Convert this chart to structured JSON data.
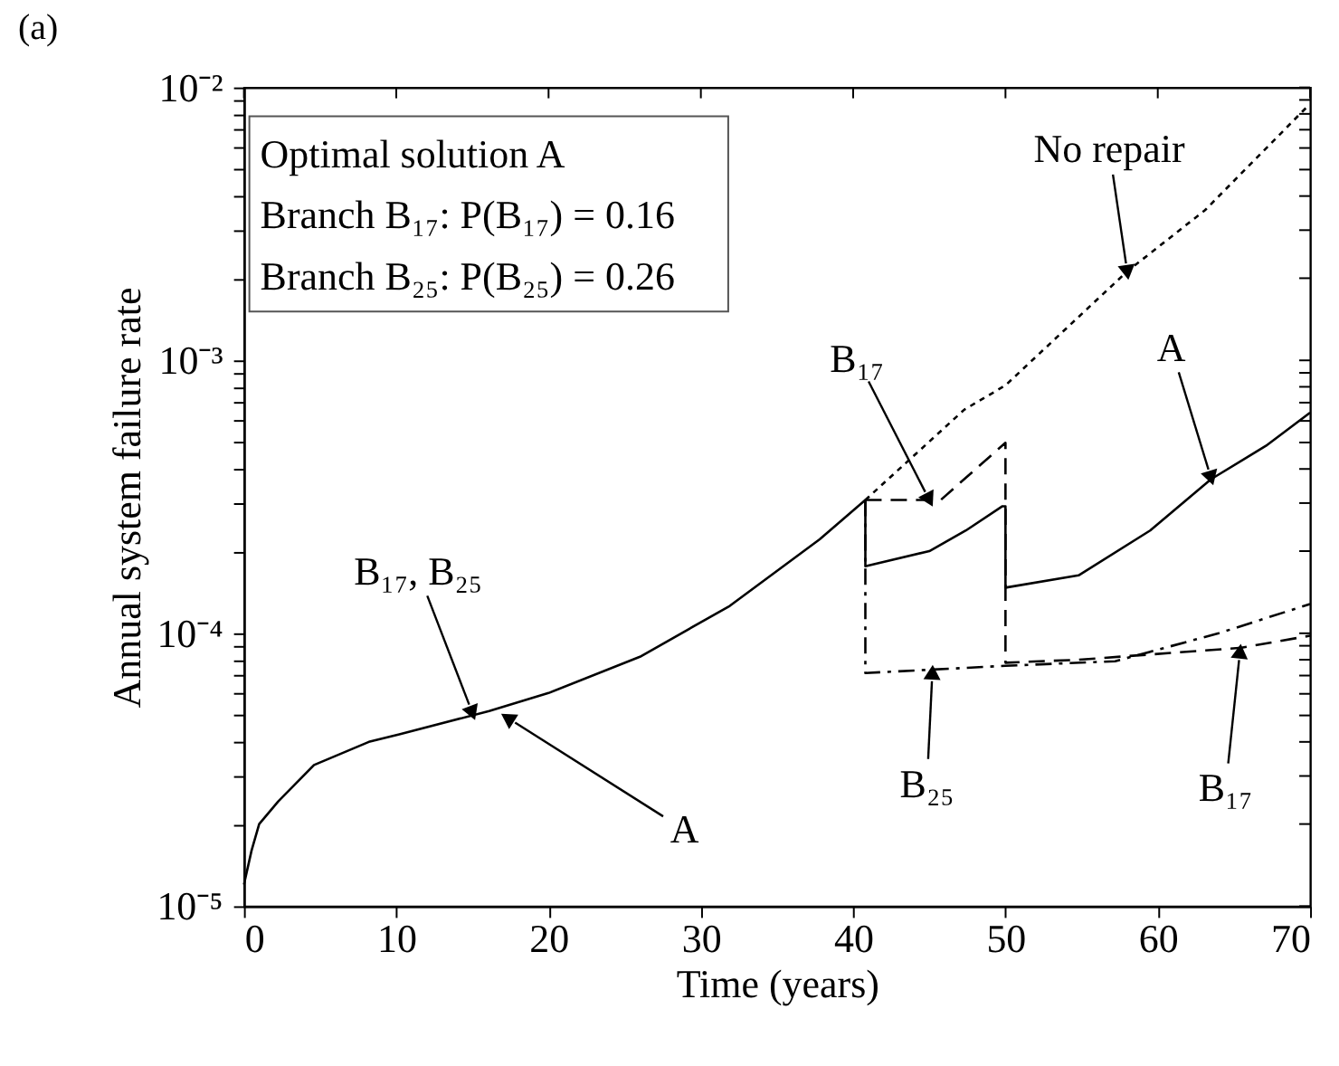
{
  "chart_data": {
    "type": "line",
    "title": "(a)",
    "xlabel": "Time (years)",
    "ylabel": "Annual system failure rate",
    "xlim": [
      0,
      70
    ],
    "ylim": [
      1e-05,
      0.01
    ],
    "log": true,
    "grid": false,
    "xticks": [
      0,
      10,
      20,
      30,
      40,
      50,
      60,
      70
    ],
    "yticks": [
      {
        "value": 1e-05,
        "label": "10⁻⁵"
      },
      {
        "value": 2e-05,
        "label": null
      },
      {
        "value": 3e-05,
        "label": null
      },
      {
        "value": 4e-05,
        "label": null
      },
      {
        "value": 5e-05,
        "label": null
      },
      {
        "value": 6e-05,
        "label": null
      },
      {
        "value": 7e-05,
        "label": null
      },
      {
        "value": 8e-05,
        "label": null
      },
      {
        "value": 9e-05,
        "label": null
      },
      {
        "value": 0.0001,
        "label": "10⁻⁴"
      },
      {
        "value": 0.0002,
        "label": null
      },
      {
        "value": 0.0003,
        "label": null
      },
      {
        "value": 0.0004,
        "label": null
      },
      {
        "value": 0.0005,
        "label": null
      },
      {
        "value": 0.0006,
        "label": null
      },
      {
        "value": 0.0007,
        "label": null
      },
      {
        "value": 0.0008,
        "label": null
      },
      {
        "value": 0.0009,
        "label": null
      },
      {
        "value": 0.001,
        "label": "10⁻³"
      },
      {
        "value": 0.002,
        "label": null
      },
      {
        "value": 0.003,
        "label": null
      },
      {
        "value": 0.004,
        "label": null
      },
      {
        "value": 0.005,
        "label": null
      },
      {
        "value": 0.006,
        "label": null
      },
      {
        "value": 0.007,
        "label": null
      },
      {
        "value": 0.008,
        "label": null
      },
      {
        "value": 0.009,
        "label": null
      },
      {
        "value": 0.01,
        "label": "10⁻²"
      }
    ],
    "series": [
      {
        "color": "#000000",
        "line_style": "solid",
        "x": [
          0,
          0.5,
          1,
          2.25,
          4.6,
          8.2,
          10.2,
          16.1,
          20,
          26,
          31.9,
          37.8,
          40.8,
          40.8,
          45,
          47.4,
          49.8,
          50,
          50,
          54.8,
          59.5,
          63.5,
          67.1,
          70
        ],
        "values": [
          1.2e-05,
          1.6e-05,
          2e-05,
          2.42e-05,
          3.29e-05,
          4e-05,
          4.26e-05,
          5.19e-05,
          6.04e-05,
          8.2e-05,
          0.000126,
          0.000221,
          0.000308,
          0.000176,
          0.0002,
          0.000238,
          0.000292,
          0.000292,
          0.000147,
          0.000163,
          0.000238,
          0.000367,
          0.000486,
          0.000643
        ]
      },
      {
        "color": "#000000",
        "line_style": "dotted",
        "x": [
          40.8,
          47.3,
          50,
          58,
          63.1,
          69.9
        ],
        "values": [
          0.000308,
          0.00066,
          0.00081,
          0.00212,
          0.00355,
          0.0086
        ]
      },
      {
        "color": "#000000",
        "line_style": "dashed",
        "x": [
          40.8,
          45.75,
          50,
          50,
          54.8,
          65.5,
          70
        ],
        "values": [
          0.000308,
          0.000308,
          0.000499,
          7.8e-05,
          8e-05,
          8.85e-05,
          9.8e-05
        ]
      },
      {
        "color": "#000000",
        "line_style": "dashdot",
        "x": [
          40.8,
          40.8,
          50,
          57.2,
          64,
          70
        ],
        "values": [
          0.000308,
          7.15e-05,
          7.6e-05,
          7.9e-05,
          0.0001,
          0.000128
        ]
      }
    ],
    "annotations": [
      {
        "text": "No repair",
        "x": 58,
        "y": 0.0021
      },
      {
        "text": "A",
        "x": 63.5,
        "y": 0.00037
      },
      {
        "text": "B₁₇",
        "x": 45,
        "y": 0.000308
      },
      {
        "text": "B₁₇, B₂₅",
        "x": 15,
        "y": 5.1e-05
      },
      {
        "text": "A",
        "x": 17.3,
        "y": 4.9e-05
      },
      {
        "text": "B₂₅",
        "x": 45.2,
        "y": 7.2e-05
      },
      {
        "text": "B₁₇",
        "x": 65.4,
        "y": 8.6e-05
      },
      "Optimal solution A",
      "Branch B₁₇: P(B₁₇) = 0.16",
      "Branch B₂₅: P(B₂₅) = 0.26"
    ]
  }
}
